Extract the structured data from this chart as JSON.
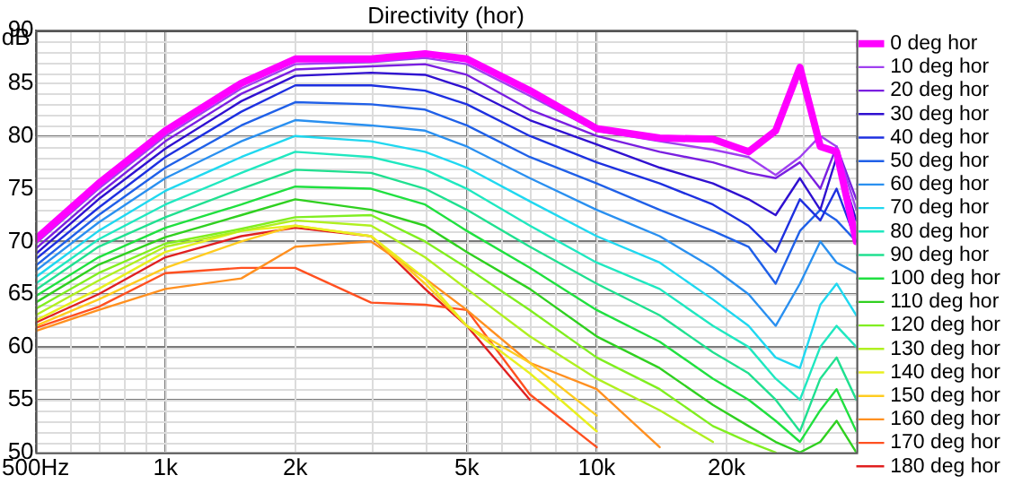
{
  "chart_data": {
    "type": "line",
    "title": "Directivity (hor)",
    "ylabel": "dB",
    "log": "x",
    "grid": true,
    "legend": "right",
    "marker": "none",
    "line_style": "solid",
    "xlim": [
      500,
      40000
    ],
    "xticks": [
      {
        "value": 500,
        "label": "500Hz"
      },
      {
        "value": 1000,
        "label": "1k"
      },
      {
        "value": 2000,
        "label": "2k"
      },
      {
        "value": 5000,
        "label": "5k"
      },
      {
        "value": 10000,
        "label": "10k"
      },
      {
        "value": 20000,
        "label": "20k"
      }
    ],
    "ylim": [
      50,
      90
    ],
    "yticks": [
      50,
      55,
      60,
      65,
      70,
      75,
      80,
      85,
      90
    ],
    "x": [
      500,
      700,
      1000,
      1500,
      2000,
      3000,
      4000,
      5000,
      7000,
      10000,
      14000,
      18600,
      22500,
      26000,
      29600,
      33000,
      36000,
      40000
    ],
    "series": [
      {
        "name": "0 deg hor",
        "color": "#ff00ff",
        "values": [
          70.2,
          75.5,
          80.5,
          85,
          87.3,
          87.3,
          87.8,
          87.3,
          84.3,
          80.7,
          79.8,
          79.7,
          78.5,
          80.5,
          86.5,
          79,
          78.5,
          70
        ]
      },
      {
        "name": "10 deg hor",
        "color": "#a040f0",
        "values": [
          69.8,
          75,
          80,
          84.5,
          86.8,
          87,
          87.4,
          86.8,
          83.8,
          80.5,
          79.5,
          78.7,
          78,
          76.3,
          78,
          80,
          79,
          73
        ]
      },
      {
        "name": "20 deg hor",
        "color": "#7a1fe0",
        "values": [
          69.3,
          74.5,
          79.5,
          84,
          86.3,
          86.6,
          86.8,
          85.8,
          82.5,
          80,
          78.5,
          77.5,
          76.5,
          76,
          77.5,
          75,
          79,
          74
        ]
      },
      {
        "name": "30 deg hor",
        "color": "#3010d0",
        "values": [
          68.8,
          74,
          78.8,
          83.3,
          85.7,
          86,
          85.8,
          84.5,
          81.5,
          79.2,
          77,
          75.5,
          74,
          72.5,
          76,
          73,
          78,
          72
        ]
      },
      {
        "name": "40 deg hor",
        "color": "#1e30e0",
        "values": [
          68.3,
          73.2,
          78,
          82.3,
          84.8,
          84.8,
          84.3,
          83,
          80,
          77.5,
          75.5,
          73.5,
          71.5,
          69,
          74,
          72,
          75,
          70
        ]
      },
      {
        "name": "50 deg hor",
        "color": "#2060e8",
        "values": [
          67.7,
          72.5,
          77,
          81,
          83.2,
          83,
          82.5,
          81,
          78,
          75.5,
          73,
          71,
          69.5,
          66,
          71,
          73,
          72,
          70
        ]
      },
      {
        "name": "60 deg hor",
        "color": "#2a90f0",
        "values": [
          67.2,
          71.8,
          76,
          79.5,
          81.5,
          81,
          80.5,
          79,
          76,
          73,
          70.5,
          67.5,
          65,
          62,
          66,
          70,
          68,
          67
        ]
      },
      {
        "name": "70 deg hor",
        "color": "#20d8f0",
        "values": [
          66.6,
          71,
          74.8,
          78,
          80,
          79.5,
          78.5,
          77,
          73.8,
          70.5,
          68,
          64.5,
          62,
          59,
          58,
          64,
          66,
          63
        ]
      },
      {
        "name": "80 deg hor",
        "color": "#20e8c0",
        "values": [
          66,
          70.2,
          73.5,
          76.5,
          78.5,
          78,
          76.8,
          75,
          71.5,
          68,
          65.5,
          62,
          60,
          57,
          55,
          60,
          62,
          60
        ]
      },
      {
        "name": "90 deg hor",
        "color": "#20e090",
        "values": [
          65.4,
          69.5,
          72.3,
          75,
          76.8,
          76.5,
          75,
          73,
          69.5,
          66,
          63,
          59.5,
          57.5,
          55,
          52,
          57,
          59,
          55
        ]
      },
      {
        "name": "100 deg hor",
        "color": "#20e040",
        "values": [
          64.8,
          68.5,
          71.3,
          73.5,
          75.2,
          75,
          73.5,
          71,
          67.5,
          63.5,
          60.5,
          57,
          55,
          53,
          51,
          54,
          56,
          52
        ]
      },
      {
        "name": "110 deg hor",
        "color": "#30d020",
        "values": [
          64.2,
          67.8,
          70.4,
          72.5,
          74,
          73,
          71.5,
          69,
          65.5,
          61,
          58,
          54.5,
          52.5,
          51,
          50,
          51,
          53,
          50
        ]
      },
      {
        "name": "120 deg hor",
        "color": "#80ee20",
        "values": [
          63.6,
          67,
          69.8,
          71.2,
          72.3,
          72.5,
          70,
          67.5,
          63.5,
          59,
          56,
          52.5,
          51,
          50,
          null,
          null,
          null,
          null
        ]
      },
      {
        "name": "130 deg hor",
        "color": "#b0f020",
        "values": [
          63,
          66.3,
          69.5,
          71,
          72,
          71.5,
          68.5,
          65.5,
          61,
          57,
          54,
          51,
          null,
          null,
          null,
          null,
          null,
          null
        ]
      },
      {
        "name": "140 deg hor",
        "color": "#e8f020",
        "values": [
          62.5,
          65.5,
          69,
          71,
          71.5,
          70.5,
          66.5,
          62,
          57.5,
          52,
          null,
          null,
          null,
          null,
          null,
          null,
          null,
          null
        ]
      },
      {
        "name": "150 deg hor",
        "color": "#ffcc20",
        "values": [
          62,
          64.5,
          67.5,
          70,
          71.5,
          70.5,
          66,
          62,
          58.5,
          53.5,
          null,
          null,
          null,
          null,
          null,
          null,
          null,
          null
        ]
      },
      {
        "name": "160 deg hor",
        "color": "#ff9020",
        "values": [
          61.5,
          63.5,
          65.5,
          66.5,
          69.5,
          70,
          66.5,
          63.5,
          58.5,
          56,
          50.5,
          null,
          null,
          null,
          null,
          null,
          null,
          null
        ]
      },
      {
        "name": "170 deg hor",
        "color": "#ff5020",
        "values": [
          61.8,
          63.8,
          67,
          67.5,
          67.5,
          64.2,
          64,
          63.5,
          55.5,
          50.5,
          null,
          null,
          null,
          null,
          null,
          null,
          null,
          null
        ]
      },
      {
        "name": "180 deg hor",
        "color": "#e02020",
        "values": [
          62.3,
          65,
          68.5,
          70.5,
          71.3,
          70.5,
          65.5,
          62,
          55,
          null,
          null,
          null,
          null,
          null,
          null,
          null,
          null,
          null
        ]
      }
    ]
  }
}
